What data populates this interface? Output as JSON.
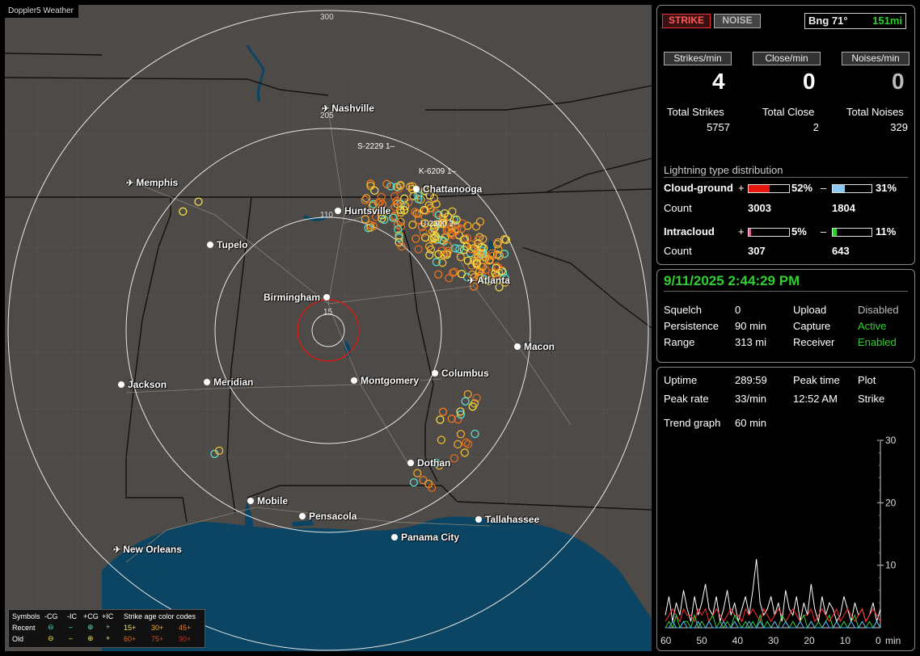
{
  "map": {
    "title": "Doppler5 Weather",
    "range_labels": [
      "300",
      "205",
      "110",
      "15"
    ],
    "sensor_labels": [
      {
        "text": "S-2229  1–"
      },
      {
        "text": "K-6209  1–"
      },
      {
        "text": "U-2300  2–"
      }
    ],
    "cities": [
      {
        "name": "Nashville",
        "kind": "airport"
      },
      {
        "name": "Memphis",
        "kind": "airport"
      },
      {
        "name": "Chattanooga",
        "kind": "city"
      },
      {
        "name": "Huntsville",
        "kind": "city"
      },
      {
        "name": "Tupelo",
        "kind": "city"
      },
      {
        "name": "Atlanta",
        "kind": "airport"
      },
      {
        "name": "Birmingham",
        "kind": "city"
      },
      {
        "name": "Macon",
        "kind": "city"
      },
      {
        "name": "Jackson",
        "kind": "city"
      },
      {
        "name": "Meridian",
        "kind": "city"
      },
      {
        "name": "Montgomery",
        "kind": "city"
      },
      {
        "name": "Columbus",
        "kind": "city"
      },
      {
        "name": "Dothan",
        "kind": "city"
      },
      {
        "name": "Mobile",
        "kind": "city"
      },
      {
        "name": "Pensacola",
        "kind": "city"
      },
      {
        "name": "Tallahassee",
        "kind": "city"
      },
      {
        "name": "Panama City",
        "kind": "city"
      },
      {
        "name": "New Orleans",
        "kind": "airport"
      }
    ],
    "legend": {
      "symbols_label": "Symbols",
      "col_cg_neg": "-CG",
      "col_ic_neg": "-IC",
      "col_cg_pos": "+CG",
      "col_ic_pos": "+IC",
      "age_label": "Strike age color codes",
      "recent_label": "Recent",
      "old_label": "Old",
      "recent_ages": [
        "15+",
        "30+",
        "45+"
      ],
      "old_ages": [
        "60+",
        "75+",
        "90+"
      ]
    }
  },
  "status_panel": {
    "strike_button": "STRIKE",
    "noise_button": "NOISE",
    "bearing": "Bng 71°",
    "distance": "151mi",
    "rate_buttons": [
      "Strikes/min",
      "Close/min",
      "Noises/min"
    ],
    "rate_values": [
      "4",
      "0",
      "0"
    ],
    "totals": [
      {
        "label": "Total Strikes",
        "value": "5757"
      },
      {
        "label": "Total Close",
        "value": "2"
      },
      {
        "label": "Total Noises",
        "value": "329"
      }
    ],
    "distribution_title": "Lightning type distribution",
    "cloud_ground_label": "Cloud-ground",
    "intracloud_label": "Intracloud",
    "count_label": "Count",
    "cg_pos_pct": "52%",
    "cg_neg_pct": "31%",
    "cg_pos_count": "3003",
    "cg_neg_count": "1804",
    "ic_pos_pct": "5%",
    "ic_neg_pct": "11%",
    "ic_pos_count": "307",
    "ic_neg_count": "643",
    "cg_pos_frac": 0.52,
    "cg_neg_frac": 0.31,
    "ic_pos_frac": 0.05,
    "ic_neg_frac": 0.11
  },
  "settings_panel": {
    "datetime": "9/11/2025 2:44:29 PM",
    "squelch_label": "Squelch",
    "squelch_value": "0",
    "persistence_label": "Persistence",
    "persistence_value": "90 min",
    "range_label": "Range",
    "range_value": "313 mi",
    "upload_label": "Upload",
    "upload_value": "Disabled",
    "capture_label": "Capture",
    "capture_value": "Active",
    "receiver_label": "Receiver",
    "receiver_value": "Enabled"
  },
  "trend_panel": {
    "uptime_label": "Uptime",
    "uptime_value": "289:59",
    "peak_time_label": "Peak time",
    "peak_time_value": "12:52 AM",
    "plot_label": "Plot",
    "plot_value": "Strike",
    "peak_rate_label": "Peak rate",
    "peak_rate_value": "33/min",
    "trend_label": "Trend graph",
    "trend_value": "60 min"
  },
  "chart_data": {
    "type": "line",
    "xlabel": "min",
    "x_ticks": [
      "60",
      "50",
      "40",
      "30",
      "20",
      "10",
      "0"
    ],
    "y_ticks": [
      "30",
      "20",
      "10"
    ],
    "ylim": [
      0,
      30
    ],
    "xlim": [
      60,
      0
    ],
    "grid": false,
    "series": [
      {
        "color": "#ffffff",
        "values": [
          2,
          5,
          1,
          4,
          2,
          6,
          3,
          1,
          5,
          2,
          4,
          7,
          3,
          2,
          5,
          1,
          3,
          6,
          2,
          4,
          1,
          3,
          5,
          2,
          6,
          11,
          4,
          2,
          3,
          5,
          2,
          4,
          1,
          6,
          3,
          2,
          5,
          1,
          4,
          2,
          7,
          3,
          1,
          5,
          2,
          4,
          3,
          1,
          2,
          5,
          3,
          1,
          4,
          2,
          3,
          1,
          2,
          4,
          1,
          3
        ]
      },
      {
        "color": "#ff2a2a",
        "values": [
          1,
          2,
          3,
          2,
          1,
          3,
          2,
          2,
          1,
          3,
          2,
          3,
          1,
          2,
          3,
          2,
          1,
          2,
          3,
          2,
          2,
          1,
          3,
          2,
          3,
          2,
          1,
          3,
          2,
          1,
          2,
          3,
          2,
          1,
          2,
          3,
          2,
          1,
          2,
          2,
          3,
          1,
          2,
          3,
          2,
          1,
          2,
          3,
          1,
          2,
          3,
          2,
          1,
          2,
          3,
          1,
          2,
          3,
          2,
          1
        ]
      },
      {
        "color": "#3ad13a",
        "values": [
          0,
          1,
          0,
          2,
          0,
          1,
          1,
          0,
          2,
          0,
          1,
          0,
          1,
          2,
          0,
          1,
          0,
          1,
          0,
          2,
          1,
          0,
          1,
          0,
          1,
          0,
          2,
          0,
          1,
          0,
          1,
          0,
          2,
          1,
          0,
          1,
          0,
          1,
          2,
          0,
          1,
          0,
          1,
          0,
          1,
          2,
          0,
          1,
          0,
          1,
          0,
          1,
          2,
          0,
          1,
          0,
          1,
          0,
          1,
          0
        ]
      },
      {
        "color": "#55bbff",
        "values": [
          0,
          0,
          1,
          0,
          0,
          1,
          0,
          0,
          0,
          1,
          0,
          0,
          1,
          0,
          0,
          0,
          1,
          0,
          0,
          1,
          0,
          0,
          0,
          1,
          0,
          0,
          1,
          0,
          0,
          0,
          1,
          0,
          0,
          1,
          0,
          0,
          0,
          1,
          0,
          0,
          1,
          0,
          0,
          0,
          1,
          0,
          0,
          1,
          0,
          0,
          0,
          1,
          0,
          0,
          1,
          0,
          0,
          0,
          1,
          0
        ]
      }
    ]
  },
  "colors": {
    "land": "#4e4a47",
    "water": "#0b4563",
    "strike_red": "#e5170f",
    "strike_blue": "#8ec9f0",
    "green": "#2fd12f",
    "ic_pink": "#e55fa0"
  }
}
